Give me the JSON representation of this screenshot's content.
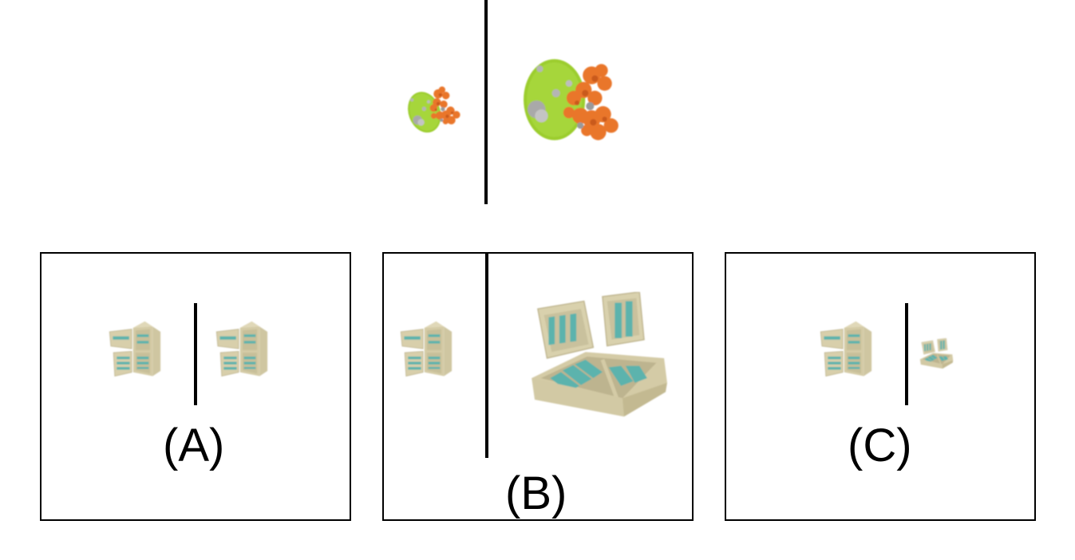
{
  "reference": {
    "left_object": "small-tree-island",
    "right_object": "large-tree-island"
  },
  "options": [
    {
      "id": "A",
      "label": "(A)",
      "left_object": "refrigerator",
      "right_object": "refrigerator"
    },
    {
      "id": "B",
      "label": "(B)",
      "left_object": "refrigerator",
      "right_object": "large-open-chest-freezer"
    },
    {
      "id": "C",
      "label": "(C)",
      "left_object": "refrigerator",
      "right_object": "small-open-chest-freezer"
    }
  ],
  "colors": {
    "line": "#000000",
    "grass": "#9ccd2f",
    "leaves": "#e9762c",
    "rock": "#a9a9a9",
    "appliance_body": "#d9d1ad",
    "appliance_shelf": "#59b4ae"
  }
}
